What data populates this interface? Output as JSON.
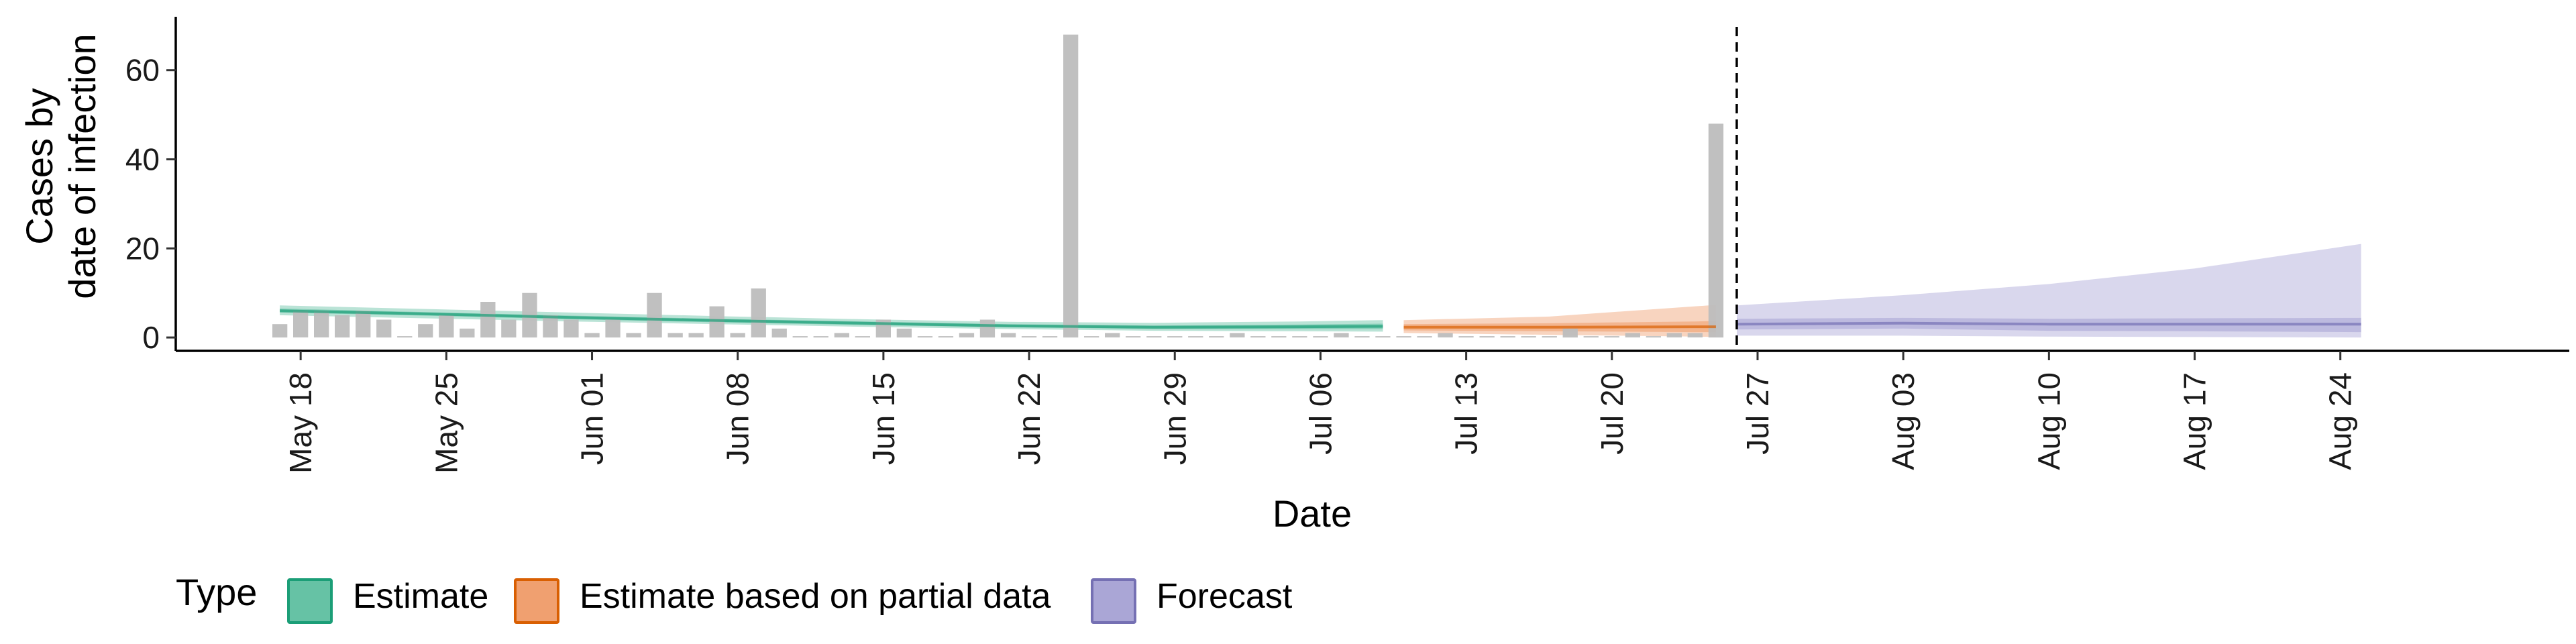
{
  "chart_data": {
    "type": "bar",
    "xlabel": "Date",
    "ylabel": [
      "Cases by",
      "date of infection"
    ],
    "ylim": [
      -3,
      72
    ],
    "y_ticks": [
      0,
      20,
      40,
      60
    ],
    "x_range": [
      "2020-05-12",
      "2020-09-04"
    ],
    "x_ticks": [
      {
        "date": "2020-05-18",
        "label": "May 18"
      },
      {
        "date": "2020-05-25",
        "label": "May 25"
      },
      {
        "date": "2020-06-01",
        "label": "Jun 01"
      },
      {
        "date": "2020-06-08",
        "label": "Jun 08"
      },
      {
        "date": "2020-06-15",
        "label": "Jun 15"
      },
      {
        "date": "2020-06-22",
        "label": "Jun 22"
      },
      {
        "date": "2020-06-29",
        "label": "Jun 29"
      },
      {
        "date": "2020-07-06",
        "label": "Jul 06"
      },
      {
        "date": "2020-07-13",
        "label": "Jul 13"
      },
      {
        "date": "2020-07-20",
        "label": "Jul 20"
      },
      {
        "date": "2020-07-27",
        "label": "Jul 27"
      },
      {
        "date": "2020-08-03",
        "label": "Aug 03"
      },
      {
        "date": "2020-08-10",
        "label": "Aug 10"
      },
      {
        "date": "2020-08-17",
        "label": "Aug 17"
      },
      {
        "date": "2020-08-24",
        "label": "Aug 24"
      }
    ],
    "grid": false,
    "legend_position": "bottom-left",
    "legend_title": "Type",
    "legend_entries": [
      {
        "label": "Estimate",
        "fill": "#66c2a5",
        "stroke": "#1b9e77"
      },
      {
        "label": "Estimate based on partial data",
        "fill": "#f0a070",
        "stroke": "#d95f02"
      },
      {
        "label": "Forecast",
        "fill": "#aaa6d6",
        "stroke": "#7570b3"
      }
    ],
    "bar_color": "#bdbdbd",
    "forecast_start_line": "2020-07-26",
    "bars": {
      "dates": [
        "2020-05-17",
        "2020-05-18",
        "2020-05-19",
        "2020-05-20",
        "2020-05-21",
        "2020-05-22",
        "2020-05-23",
        "2020-05-24",
        "2020-05-25",
        "2020-05-26",
        "2020-05-27",
        "2020-05-28",
        "2020-05-29",
        "2020-05-30",
        "2020-05-31",
        "2020-06-01",
        "2020-06-02",
        "2020-06-03",
        "2020-06-04",
        "2020-06-05",
        "2020-06-06",
        "2020-06-07",
        "2020-06-08",
        "2020-06-09",
        "2020-06-10",
        "2020-06-11",
        "2020-06-12",
        "2020-06-13",
        "2020-06-14",
        "2020-06-15",
        "2020-06-16",
        "2020-06-17",
        "2020-06-18",
        "2020-06-19",
        "2020-06-20",
        "2020-06-21",
        "2020-06-22",
        "2020-06-23",
        "2020-06-24",
        "2020-06-25",
        "2020-06-26",
        "2020-06-27",
        "2020-06-28",
        "2020-06-29",
        "2020-06-30",
        "2020-07-01",
        "2020-07-02",
        "2020-07-03",
        "2020-07-04",
        "2020-07-05",
        "2020-07-06",
        "2020-07-07",
        "2020-07-08",
        "2020-07-09",
        "2020-07-10",
        "2020-07-11",
        "2020-07-12",
        "2020-07-13",
        "2020-07-14",
        "2020-07-15",
        "2020-07-16",
        "2020-07-17",
        "2020-07-18",
        "2020-07-19",
        "2020-07-20",
        "2020-07-21",
        "2020-07-22",
        "2020-07-23",
        "2020-07-24",
        "2020-07-25"
      ],
      "values": [
        3,
        6,
        6,
        5,
        6,
        4,
        0,
        3,
        5,
        2,
        8,
        4,
        10,
        5,
        4,
        1,
        4,
        1,
        10,
        1,
        1,
        7,
        1,
        11,
        2,
        0,
        0,
        1,
        0,
        4,
        2,
        0,
        0,
        1,
        4,
        1,
        0,
        0,
        68,
        0,
        1,
        0,
        0,
        0,
        0,
        0,
        1,
        0,
        0,
        0,
        0,
        1,
        0,
        0,
        0,
        0,
        1,
        0,
        0,
        0,
        0,
        0,
        2,
        0,
        0,
        1,
        0,
        1,
        1,
        48
      ]
    },
    "series": [
      {
        "name": "Estimate",
        "color": "#1b9e77",
        "fill": "#66c2a5",
        "points": [
          {
            "date": "2020-05-17",
            "median": 6.0,
            "lo90": 5.0,
            "hi90": 7.2,
            "lo50": 5.6,
            "hi50": 6.5
          },
          {
            "date": "2020-05-24",
            "median": 5.3,
            "lo90": 4.3,
            "hi90": 6.4,
            "lo50": 4.9,
            "hi50": 5.7
          },
          {
            "date": "2020-05-31",
            "median": 4.5,
            "lo90": 3.6,
            "hi90": 5.6,
            "lo50": 4.1,
            "hi50": 4.9
          },
          {
            "date": "2020-06-07",
            "median": 3.8,
            "lo90": 3.0,
            "hi90": 4.8,
            "lo50": 3.4,
            "hi50": 4.2
          },
          {
            "date": "2020-06-14",
            "median": 3.2,
            "lo90": 2.4,
            "hi90": 4.1,
            "lo50": 2.8,
            "hi50": 3.6
          },
          {
            "date": "2020-06-21",
            "median": 2.6,
            "lo90": 1.9,
            "hi90": 3.5,
            "lo50": 2.3,
            "hi50": 3.0
          },
          {
            "date": "2020-06-28",
            "median": 2.3,
            "lo90": 1.5,
            "hi90": 3.3,
            "lo50": 1.9,
            "hi50": 2.7
          },
          {
            "date": "2020-07-05",
            "median": 2.4,
            "lo90": 1.4,
            "hi90": 3.6,
            "lo50": 1.9,
            "hi50": 2.9
          },
          {
            "date": "2020-07-09",
            "median": 2.5,
            "lo90": 1.3,
            "hi90": 3.9,
            "lo50": 1.9,
            "hi50": 3.1
          }
        ]
      },
      {
        "name": "Estimate based on partial data",
        "color": "#d95f02",
        "fill": "#f0a070",
        "points": [
          {
            "date": "2020-07-10",
            "median": 2.3,
            "lo90": 1.0,
            "hi90": 3.9,
            "lo50": 1.6,
            "hi50": 3.0
          },
          {
            "date": "2020-07-17",
            "median": 2.3,
            "lo90": 0.6,
            "hi90": 4.7,
            "lo50": 1.4,
            "hi50": 3.2
          },
          {
            "date": "2020-07-24",
            "median": 2.4,
            "lo90": 0.2,
            "hi90": 7.0,
            "lo50": 1.2,
            "hi50": 3.6
          },
          {
            "date": "2020-07-25",
            "median": 2.4,
            "lo90": 0.1,
            "hi90": 7.3,
            "lo50": 1.2,
            "hi50": 3.7
          }
        ]
      },
      {
        "name": "Forecast",
        "color": "#7570b3",
        "fill": "#aaa6d6",
        "points": [
          {
            "date": "2020-07-26",
            "median": 3.0,
            "lo90": 0.4,
            "hi90": 7.2,
            "lo50": 1.8,
            "hi50": 4.2
          },
          {
            "date": "2020-08-03",
            "median": 3.2,
            "lo90": 0.4,
            "hi90": 9.5,
            "lo50": 2.0,
            "hi50": 4.4
          },
          {
            "date": "2020-08-10",
            "median": 3.0,
            "lo90": 0.2,
            "hi90": 12.0,
            "lo50": 1.5,
            "hi50": 4.2
          },
          {
            "date": "2020-08-17",
            "median": 3.0,
            "lo90": 0.1,
            "hi90": 15.5,
            "lo50": 1.4,
            "hi50": 4.3
          },
          {
            "date": "2020-08-25",
            "median": 3.0,
            "lo90": 0.0,
            "hi90": 21.0,
            "lo50": 1.2,
            "hi50": 4.4
          }
        ]
      }
    ]
  }
}
